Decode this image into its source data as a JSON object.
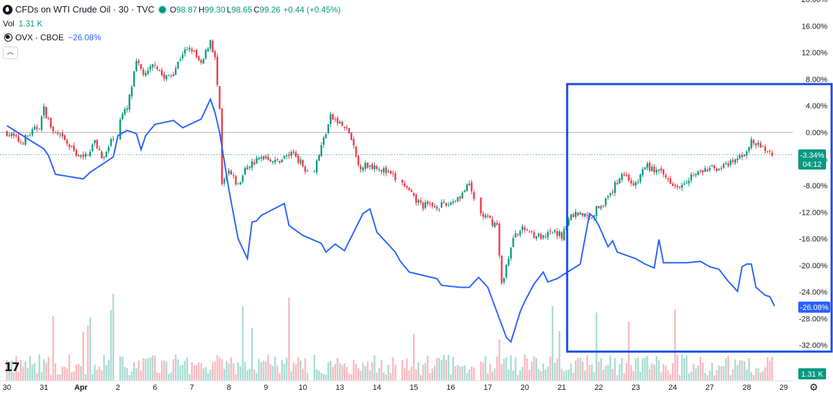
{
  "legend": {
    "symbol_title": "CFDs on WTI Crude Oil · 30 · TVC",
    "ohlc": [
      {
        "k": "O",
        "v": "98.87"
      },
      {
        "k": "H",
        "v": "99.30"
      },
      {
        "k": "L",
        "v": "98.65"
      },
      {
        "k": "C",
        "v": "99.26"
      }
    ],
    "change": "+0.44 (+0.45%)",
    "vol_label": "Vol",
    "vol_value": "1.31 K",
    "ovx_label": "OVX · CBOE",
    "ovx_value": "−26.08%",
    "collapse_icon": "chevron-up-icon"
  },
  "colors": {
    "up": "#089981",
    "down": "#f23645",
    "ovx_line": "#2962ff",
    "highlight_box": "#1649e0",
    "grid_zero": "#b2b5be"
  },
  "chart_data": {
    "type": "line",
    "y_axis": {
      "unit": "%",
      "ylim": [
        -34,
        20
      ],
      "ticks": [
        "20.00%",
        "16.00%",
        "12.00%",
        "8.00%",
        "4.00%",
        "0.00%",
        "-4.00%",
        "-8.00%",
        "-12.00%",
        "-16.00%",
        "-20.00%",
        "-24.00%",
        "-28.00%",
        "-32.00%"
      ],
      "tick_values": [
        20,
        16,
        12,
        8,
        4,
        0,
        -4,
        -8,
        -12,
        -16,
        -20,
        -24,
        -28,
        -32
      ]
    },
    "x_axis": {
      "tick_labels": [
        "30",
        "31",
        "Apr",
        "2",
        "6",
        "7",
        "8",
        "9",
        "10",
        "13",
        "14",
        "15",
        "16",
        "17",
        "20",
        "21",
        "22",
        "23",
        "24",
        "27",
        "28",
        "29"
      ],
      "tick_index": [
        0,
        16,
        32,
        48,
        64,
        80,
        96,
        112,
        128,
        144,
        160,
        176,
        192,
        208,
        224,
        240,
        256,
        272,
        288,
        304,
        320,
        336
      ]
    },
    "badges": {
      "wti_change": "-3.34%",
      "wti_countdown": "04:12",
      "ovx_change": "-26.08%",
      "volume": "1.31 K"
    },
    "series": [
      {
        "name": "CFDs on WTI Crude Oil",
        "style": "candlestick",
        "anchors": [
          [
            0,
            0
          ],
          [
            6,
            -1.5
          ],
          [
            14,
            1
          ],
          [
            16,
            3.5
          ],
          [
            20,
            0
          ],
          [
            24,
            -1
          ],
          [
            28,
            -2.5
          ],
          [
            33,
            -4
          ],
          [
            38,
            -1.5
          ],
          [
            42,
            -4
          ],
          [
            46,
            -0.5
          ],
          [
            48,
            1.8
          ],
          [
            52,
            3.5
          ],
          [
            56,
            10.4
          ],
          [
            60,
            8.5
          ],
          [
            64,
            10.5
          ],
          [
            68,
            8
          ],
          [
            72,
            9
          ],
          [
            76,
            12
          ],
          [
            80,
            12.5
          ],
          [
            84,
            10
          ],
          [
            88,
            14
          ],
          [
            90,
            11
          ],
          [
            92,
            3
          ],
          [
            93,
            -8
          ],
          [
            96,
            -6
          ],
          [
            100,
            -8
          ],
          [
            104,
            -5
          ],
          [
            112,
            -3.5
          ],
          [
            116,
            -4.5
          ],
          [
            124,
            -3
          ],
          [
            128,
            -5
          ],
          [
            132,
            -6.5
          ],
          [
            140,
            2.3
          ],
          [
            144,
            1.3
          ],
          [
            148,
            0
          ],
          [
            150,
            -2.5
          ],
          [
            152,
            -5
          ],
          [
            160,
            -5
          ],
          [
            168,
            -7
          ],
          [
            172,
            -8
          ],
          [
            176,
            -10
          ],
          [
            180,
            -11
          ],
          [
            184,
            -11
          ],
          [
            190,
            -11
          ],
          [
            196,
            -9.5
          ],
          [
            200,
            -8
          ],
          [
            204,
            -12
          ],
          [
            208,
            -13
          ],
          [
            212,
            -14
          ],
          [
            214,
            -23
          ],
          [
            216,
            -20
          ],
          [
            220,
            -15
          ],
          [
            224,
            -14.5
          ],
          [
            232,
            -16
          ],
          [
            236,
            -15
          ],
          [
            240,
            -15.5
          ],
          [
            244,
            -12.5
          ],
          [
            248,
            -12
          ],
          [
            252,
            -13
          ],
          [
            256,
            -11
          ],
          [
            260,
            -10
          ],
          [
            266,
            -6
          ],
          [
            272,
            -8
          ],
          [
            276,
            -5
          ],
          [
            282,
            -6
          ],
          [
            290,
            -8
          ],
          [
            296,
            -6.5
          ],
          [
            304,
            -5.5
          ],
          [
            312,
            -5
          ],
          [
            318,
            -3.5
          ],
          [
            322,
            -1.5
          ],
          [
            326,
            -2.2
          ],
          [
            330,
            -3
          ],
          [
            331,
            -3.3
          ]
        ]
      },
      {
        "name": "OVX · CBOE",
        "style": "line",
        "points": [
          [
            0,
            1
          ],
          [
            16,
            -2.5
          ],
          [
            18,
            -3.5
          ],
          [
            21,
            -6.3
          ],
          [
            33,
            -7
          ],
          [
            36,
            -6
          ],
          [
            46,
            -3.7
          ],
          [
            48,
            -0.5
          ],
          [
            52,
            0.3
          ],
          [
            56,
            -0.2
          ],
          [
            58,
            -2.6
          ],
          [
            60,
            -0.5
          ],
          [
            64,
            1.2
          ],
          [
            72,
            1.8
          ],
          [
            76,
            0.7
          ],
          [
            84,
            2
          ],
          [
            88,
            5
          ],
          [
            90,
            3
          ],
          [
            92,
            0
          ],
          [
            96,
            -8.6
          ],
          [
            100,
            -16
          ],
          [
            104,
            -19
          ],
          [
            106,
            -13.5
          ],
          [
            108,
            -13.3
          ],
          [
            110,
            -12.5
          ],
          [
            120,
            -10.7
          ],
          [
            122,
            -14
          ],
          [
            128,
            -15.5
          ],
          [
            136,
            -16.7
          ],
          [
            138,
            -18
          ],
          [
            142,
            -16.8
          ],
          [
            146,
            -17.8
          ],
          [
            154,
            -12.2
          ],
          [
            157,
            -11.5
          ],
          [
            160,
            -15
          ],
          [
            168,
            -18
          ],
          [
            170,
            -19.3
          ],
          [
            174,
            -21
          ],
          [
            186,
            -22
          ],
          [
            188,
            -23
          ],
          [
            196,
            -23.3
          ],
          [
            200,
            -23.3
          ],
          [
            204,
            -21.8
          ],
          [
            208,
            -23.3
          ],
          [
            216,
            -30.8
          ],
          [
            218,
            -31.5
          ],
          [
            222,
            -27
          ],
          [
            224,
            -25.4
          ],
          [
            228,
            -22.8
          ],
          [
            232,
            -21
          ],
          [
            234,
            -22.5
          ],
          [
            238,
            -22
          ],
          [
            248,
            -19.8
          ],
          [
            250,
            -16
          ],
          [
            252,
            -12.2
          ],
          [
            254,
            -12.8
          ],
          [
            256,
            -14
          ],
          [
            260,
            -17.2
          ],
          [
            262,
            -16.3
          ],
          [
            264,
            -18
          ],
          [
            272,
            -19
          ],
          [
            276,
            -19.8
          ],
          [
            280,
            -20.4
          ],
          [
            282,
            -16.1
          ],
          [
            284,
            -19.6
          ],
          [
            294,
            -19.6
          ],
          [
            300,
            -19.4
          ],
          [
            304,
            -20.2
          ],
          [
            308,
            -20.6
          ],
          [
            312,
            -22.4
          ],
          [
            316,
            -23.9
          ],
          [
            318,
            -20.2
          ],
          [
            320,
            -19.8
          ],
          [
            322,
            -19.8
          ],
          [
            324,
            -23.3
          ],
          [
            328,
            -24.5
          ],
          [
            330,
            -24.7
          ],
          [
            332,
            -26.1
          ]
        ]
      }
    ],
    "gaps_after_index": [
      46,
      130,
      168,
      202
    ]
  }
}
